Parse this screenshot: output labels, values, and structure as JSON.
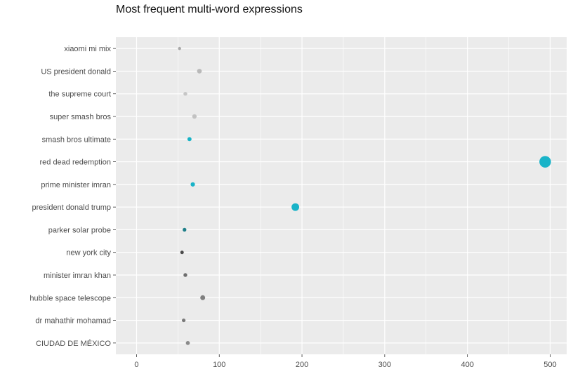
{
  "chart_data": {
    "type": "scatter",
    "title": "Most frequent multi-word expressions",
    "xlabel": "",
    "ylabel": "",
    "xlim": [
      -25,
      520
    ],
    "x_ticks": [
      0,
      100,
      200,
      300,
      400,
      500
    ],
    "categories": [
      "xiaomi mi mix",
      "US president donald",
      "the supreme court",
      "super smash bros",
      "smash bros ultimate",
      "red dead redemption",
      "prime minister imran",
      "president donald trump",
      "parker solar probe",
      "new york city",
      "minister imran khan",
      "hubble space telescope",
      "dr mahathir mohamad",
      "CIUDAD DE MÉXICO"
    ],
    "points": [
      {
        "label": "xiaomi mi mix",
        "x": 52,
        "color": "#a9a9a9"
      },
      {
        "label": "US president donald",
        "x": 76,
        "color": "#b9b9b9"
      },
      {
        "label": "the supreme court",
        "x": 59,
        "color": "#c6c6c6"
      },
      {
        "label": "super smash bros",
        "x": 70,
        "color": "#c2c2c2"
      },
      {
        "label": "smash bros ultimate",
        "x": 64,
        "color": "#17b3c6"
      },
      {
        "label": "red dead redemption",
        "x": 494,
        "color": "#19b3c8"
      },
      {
        "label": "prime minister imran",
        "x": 68,
        "color": "#19b3c8"
      },
      {
        "label": "president donald trump",
        "x": 192,
        "color": "#19b3c8"
      },
      {
        "label": "parker solar probe",
        "x": 58,
        "color": "#1f7f89"
      },
      {
        "label": "new york city",
        "x": 55,
        "color": "#4a4a4a"
      },
      {
        "label": "minister imran khan",
        "x": 59,
        "color": "#6e6e6e"
      },
      {
        "label": "hubble space telescope",
        "x": 80,
        "color": "#7f7f7f"
      },
      {
        "label": "dr mahathir mohamad",
        "x": 57,
        "color": "#7a7a7a"
      },
      {
        "label": "CIUDAD DE MÉXICO",
        "x": 62,
        "color": "#8a8a8a"
      }
    ],
    "grid": true,
    "legend": "none",
    "background_color": "#ebebeb",
    "gridline_color": "#ffffff"
  }
}
